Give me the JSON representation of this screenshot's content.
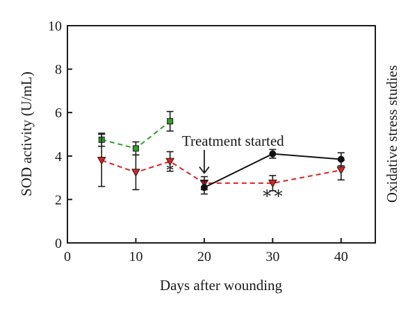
{
  "chart_data": {
    "type": "line",
    "title": "",
    "xlabel": "Days after wounding",
    "ylabel": "SOD activity (U/mL)",
    "right_label": "Oxidative stress studies",
    "xlim": [
      0,
      45
    ],
    "ylim": [
      0,
      10
    ],
    "xticks": [
      0,
      10,
      20,
      30,
      40
    ],
    "yticks": [
      0,
      2,
      4,
      6,
      8,
      10
    ],
    "grid": false,
    "legend": "none",
    "series": [
      {
        "color": "#2e9e2e",
        "dash": "dashed",
        "marker": "square",
        "x": [
          5,
          10,
          15
        ],
        "y": [
          4.75,
          4.35,
          5.6
        ],
        "err": [
          0.3,
          0.3,
          0.45
        ]
      },
      {
        "color": "#e02020",
        "dash": "dashed",
        "marker": "triangle-down",
        "x": [
          5,
          10,
          15,
          20,
          30,
          40
        ],
        "y": [
          3.8,
          3.25,
          3.75,
          2.75,
          2.75,
          3.35
        ],
        "err": [
          1.2,
          0.8,
          0.45,
          0.3,
          0.35,
          0.45
        ]
      },
      {
        "color": "#111111",
        "dash": "solid",
        "marker": "circle",
        "x": [
          20,
          30,
          40
        ],
        "y": [
          2.55,
          4.1,
          3.85
        ],
        "err": [
          0.3,
          0.2,
          0.3
        ]
      }
    ],
    "annotations": [
      {
        "text": "Treatment started",
        "x": 20,
        "y": 3.15,
        "arrow": true
      },
      {
        "text": "*",
        "x": 15,
        "y": 3.1
      },
      {
        "text": "∗∗",
        "x": 30,
        "y": 2.05
      }
    ]
  }
}
